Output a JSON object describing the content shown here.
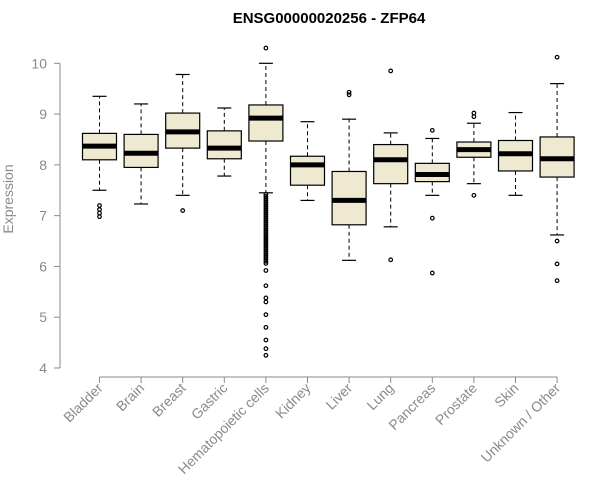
{
  "chart_data": {
    "type": "boxplot",
    "title": "ENSG00000020256 - ZFP64",
    "xlabel": "",
    "ylabel": "Expression",
    "ylim": [
      4,
      10.4
    ],
    "yticks": [
      4,
      5,
      6,
      7,
      8,
      9,
      10
    ],
    "grid": false,
    "box_fill": "#efe9d2",
    "box_stroke": "#000000",
    "categories": [
      "Bladder",
      "Brain",
      "Breast",
      "Gastric",
      "Hematopoietic cells",
      "Kidney",
      "Liver",
      "Lung",
      "Pancreas",
      "Prostate",
      "Skin",
      "Unknown / Other"
    ],
    "boxes": [
      {
        "label": "Bladder",
        "whisker_low": 7.5,
        "q1": 8.1,
        "median": 8.37,
        "q3": 8.62,
        "whisker_high": 9.35,
        "outliers": [
          7.2,
          7.12,
          7.05,
          6.98
        ]
      },
      {
        "label": "Brain",
        "whisker_low": 7.23,
        "q1": 7.95,
        "median": 8.23,
        "q3": 8.6,
        "whisker_high": 9.2,
        "outliers": []
      },
      {
        "label": "Breast",
        "whisker_low": 7.4,
        "q1": 8.33,
        "median": 8.65,
        "q3": 9.02,
        "whisker_high": 9.78,
        "outliers": [
          7.1
        ]
      },
      {
        "label": "Gastric",
        "whisker_low": 7.78,
        "q1": 8.12,
        "median": 8.33,
        "q3": 8.67,
        "whisker_high": 9.12,
        "outliers": []
      },
      {
        "label": "Hematopoietic cells",
        "whisker_low": 7.45,
        "q1": 8.47,
        "median": 8.92,
        "q3": 9.18,
        "whisker_high": 10.0,
        "outliers": [
          10.3,
          7.42,
          7.38,
          7.34,
          7.3,
          7.26,
          7.22,
          7.18,
          7.14,
          7.1,
          7.06,
          7.02,
          6.98,
          6.94,
          6.9,
          6.86,
          6.82,
          6.78,
          6.74,
          6.7,
          6.66,
          6.62,
          6.58,
          6.54,
          6.5,
          6.46,
          6.42,
          6.38,
          6.34,
          6.3,
          6.26,
          6.22,
          6.18,
          6.14,
          6.1,
          6.06,
          5.92,
          5.62,
          5.38,
          5.3,
          5.05,
          4.8,
          4.55,
          4.38,
          4.25
        ]
      },
      {
        "label": "Kidney",
        "whisker_low": 7.3,
        "q1": 7.6,
        "median": 8.0,
        "q3": 8.17,
        "whisker_high": 8.85,
        "outliers": []
      },
      {
        "label": "Liver",
        "whisker_low": 6.12,
        "q1": 6.82,
        "median": 7.3,
        "q3": 7.87,
        "whisker_high": 8.9,
        "outliers": [
          9.43,
          9.38
        ]
      },
      {
        "label": "Lung",
        "whisker_low": 6.78,
        "q1": 7.63,
        "median": 8.1,
        "q3": 8.4,
        "whisker_high": 8.63,
        "outliers": [
          9.85,
          6.13
        ]
      },
      {
        "label": "Pancreas",
        "whisker_low": 7.4,
        "q1": 7.67,
        "median": 7.81,
        "q3": 8.03,
        "whisker_high": 8.52,
        "outliers": [
          8.68,
          6.95,
          5.87
        ]
      },
      {
        "label": "Prostate",
        "whisker_low": 7.63,
        "q1": 8.15,
        "median": 8.3,
        "q3": 8.45,
        "whisker_high": 8.82,
        "outliers": [
          9.02,
          8.95,
          7.4
        ]
      },
      {
        "label": "Skin",
        "whisker_low": 7.4,
        "q1": 7.88,
        "median": 8.22,
        "q3": 8.48,
        "whisker_high": 9.03,
        "outliers": []
      },
      {
        "label": "Unknown / Other",
        "whisker_low": 6.62,
        "q1": 7.76,
        "median": 8.12,
        "q3": 8.55,
        "whisker_high": 9.6,
        "outliers": [
          10.12,
          6.5,
          6.05,
          5.72
        ]
      }
    ]
  }
}
